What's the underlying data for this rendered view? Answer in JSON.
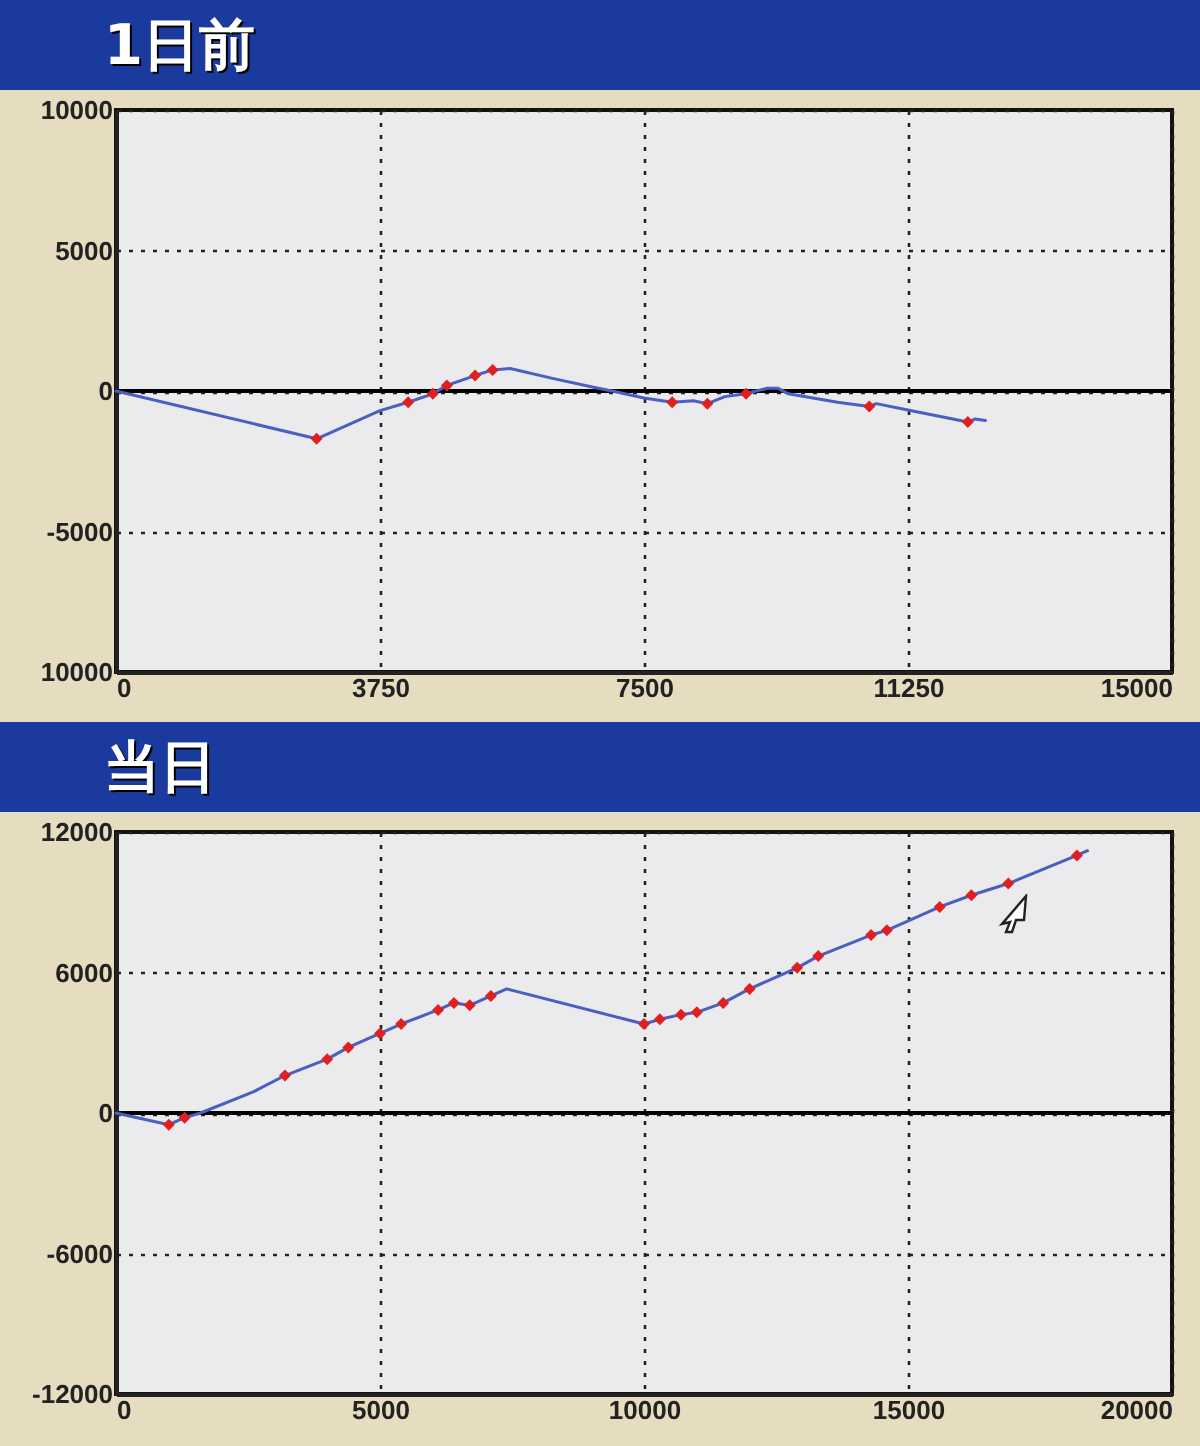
{
  "chart_data": [
    {
      "type": "line",
      "title": "1日前",
      "xlim": [
        0,
        15000
      ],
      "xticks": [
        0,
        3750,
        7500,
        11250,
        15000
      ],
      "ylim": [
        -10000,
        10000
      ],
      "yticks": [
        {
          "value": -10000,
          "label": "10000"
        },
        -5000,
        0,
        5000,
        10000
      ],
      "grid": true,
      "ref_lines": [
        {
          "axis": "y",
          "value": 0,
          "color": "#000000"
        }
      ],
      "series": [
        {
          "type": "line",
          "color": "#4a5fc0",
          "x": [
            0,
            2850,
            3750,
            4150,
            4500,
            4700,
            5100,
            5350,
            5600,
            6200,
            6850,
            7050,
            7500,
            7900,
            8200,
            8400,
            8650,
            8950,
            9250,
            9400,
            9550,
            10250,
            10700,
            10800,
            11300,
            12100,
            12200,
            12350
          ],
          "values": [
            0,
            -1700,
            -700,
            -400,
            -100,
            200,
            550,
            750,
            800,
            450,
            100,
            0,
            -250,
            -400,
            -350,
            -450,
            -200,
            -100,
            100,
            100,
            -100,
            -400,
            -550,
            -450,
            -700,
            -1100,
            -1000,
            -1050
          ]
        },
        {
          "type": "scatter",
          "color": "#e02020",
          "marker": "diamond",
          "x": [
            2850,
            4150,
            4500,
            4700,
            5100,
            5350,
            7900,
            8400,
            8950,
            10700,
            12100
          ],
          "values": [
            -1700,
            -400,
            -100,
            200,
            550,
            750,
            -400,
            -450,
            -100,
            -550,
            -1100
          ]
        }
      ]
    },
    {
      "type": "line",
      "title": "当日",
      "xlim": [
        0,
        20000
      ],
      "xticks": [
        0,
        5000,
        10000,
        15000,
        20000
      ],
      "ylim": [
        -12000,
        12000
      ],
      "yticks": [
        -12000,
        -6000,
        0,
        6000,
        12000
      ],
      "grid": true,
      "ref_lines": [
        {
          "axis": "y",
          "value": 0,
          "color": "#000000"
        }
      ],
      "series": [
        {
          "type": "line",
          "color": "#4a5fc0",
          "x": [
            0,
            1000,
            1300,
            1600,
            2600,
            3200,
            4000,
            4400,
            5000,
            5400,
            6100,
            6400,
            6700,
            7100,
            7400,
            10000,
            10300,
            10700,
            11000,
            11500,
            12000,
            12900,
            13300,
            14300,
            14600,
            15100,
            15600,
            16200,
            16900,
            18200,
            18400
          ],
          "values": [
            0,
            -500,
            -200,
            0,
            900,
            1600,
            2300,
            2800,
            3400,
            3800,
            4400,
            4700,
            4600,
            5000,
            5300,
            3800,
            4000,
            4200,
            4300,
            4700,
            5300,
            6200,
            6700,
            7600,
            7800,
            8300,
            8800,
            9300,
            9800,
            11000,
            11200
          ]
        },
        {
          "type": "scatter",
          "color": "#e02020",
          "marker": "diamond",
          "x": [
            1000,
            1300,
            3200,
            4000,
            4400,
            5000,
            5400,
            6100,
            6400,
            6700,
            7100,
            10000,
            10300,
            10700,
            11000,
            11500,
            12000,
            12900,
            13300,
            14300,
            14600,
            15600,
            16200,
            16900,
            18200
          ],
          "values": [
            -500,
            -200,
            1600,
            2300,
            2800,
            3400,
            3800,
            4400,
            4700,
            4600,
            5000,
            3800,
            4000,
            4200,
            4300,
            4700,
            5300,
            6200,
            6700,
            7600,
            7800,
            8800,
            9300,
            9800,
            11000
          ]
        }
      ]
    }
  ]
}
